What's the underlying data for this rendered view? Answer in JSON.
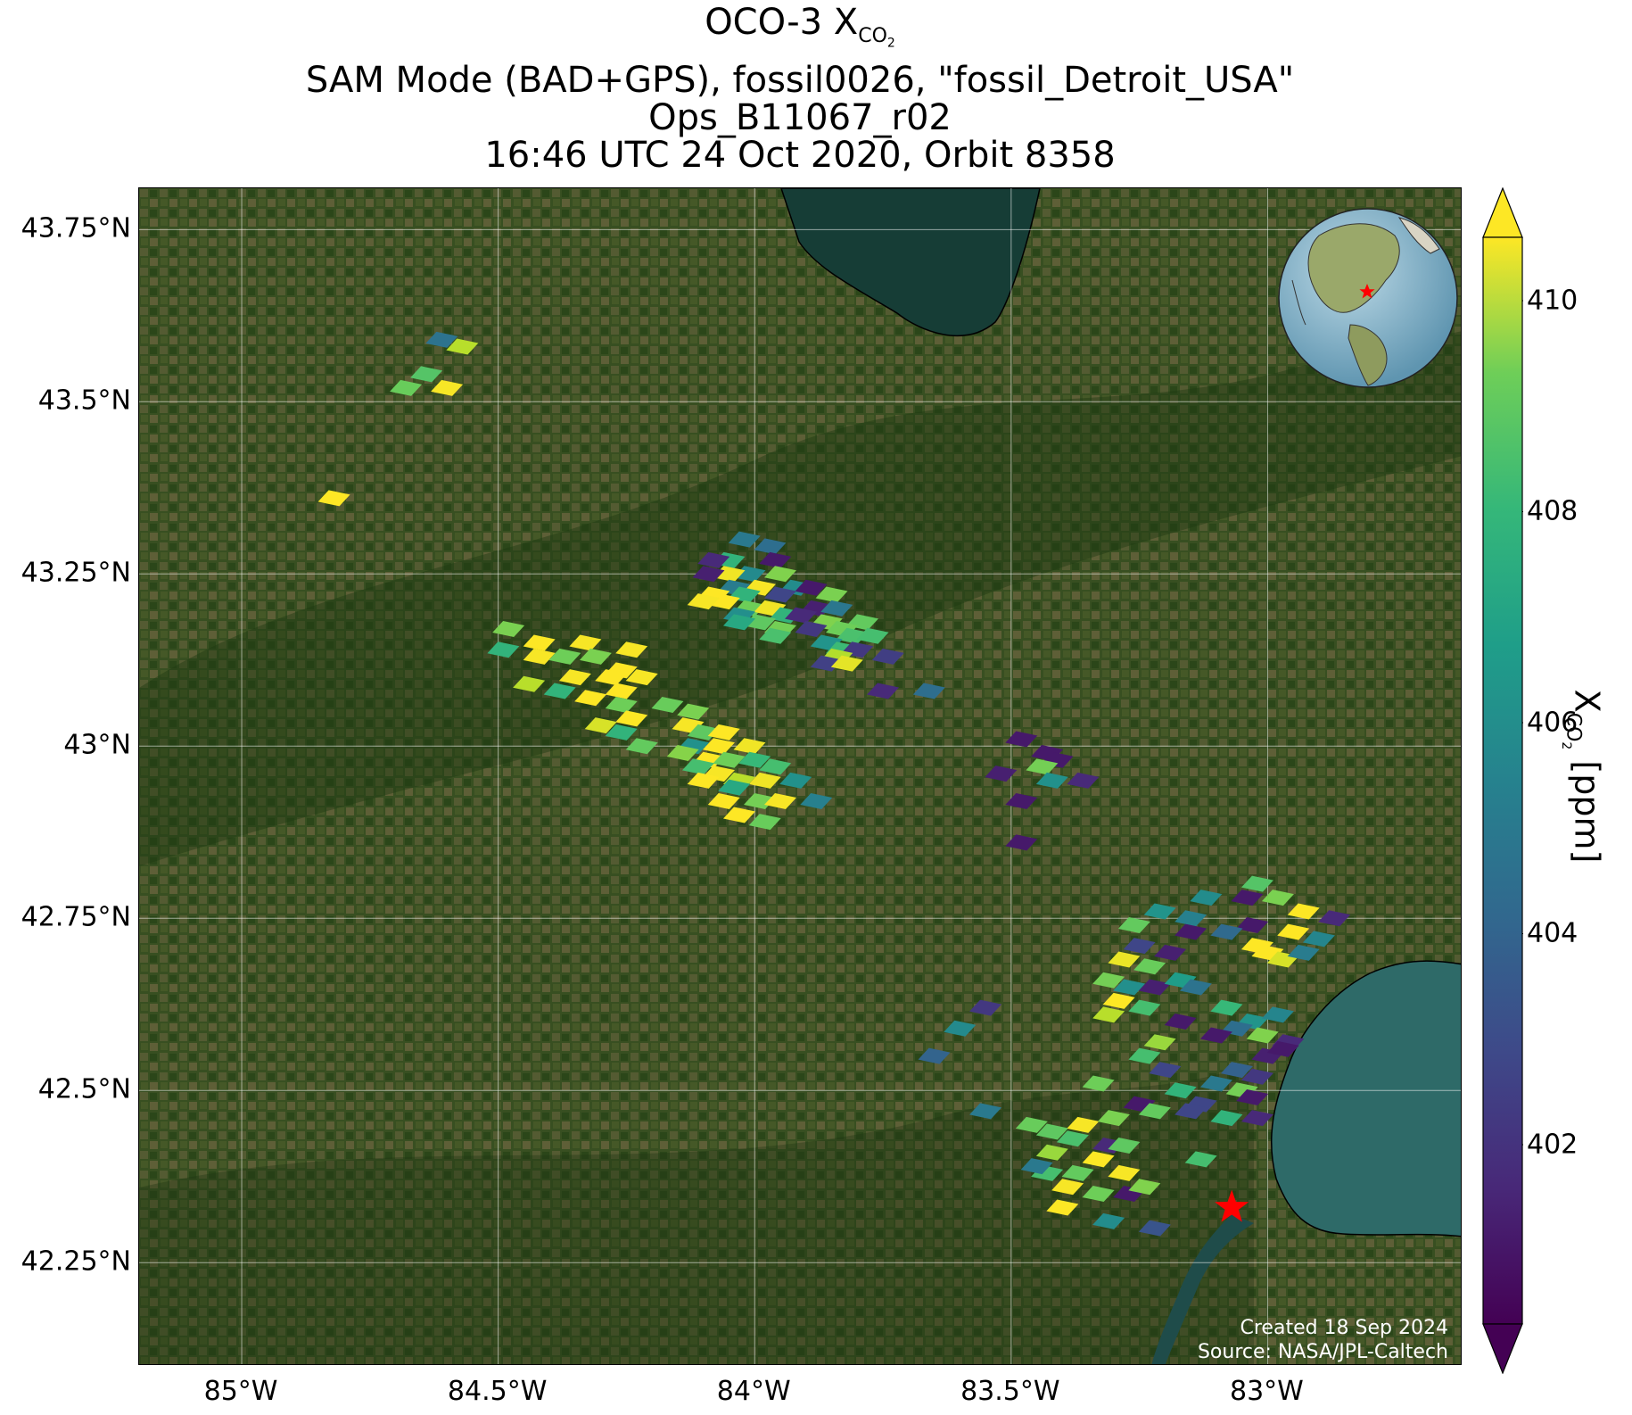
{
  "title": {
    "line1_prefix": "OCO-3 X",
    "line1_sub": "CO",
    "line1_subsub": "2",
    "line2": "SAM Mode (BAD+GPS), fossil0026, \"fossil_Detroit_USA\"",
    "line3": "Ops_B11067_r02",
    "line4": "16:46 UTC 24 Oct 2020, Orbit 8358"
  },
  "map": {
    "lon_range": [
      -85.2,
      -82.62
    ],
    "lat_range": [
      42.1,
      43.81
    ],
    "lat_ticks": [
      {
        "value": 43.75,
        "label": "43.75°N"
      },
      {
        "value": 43.5,
        "label": "43.5°N"
      },
      {
        "value": 43.25,
        "label": "43.25°N"
      },
      {
        "value": 43.0,
        "label": "43°N"
      },
      {
        "value": 42.75,
        "label": "42.75°N"
      },
      {
        "value": 42.5,
        "label": "42.5°N"
      },
      {
        "value": 42.25,
        "label": "42.25°N"
      }
    ],
    "lon_ticks": [
      {
        "value": -85.0,
        "label": "85°W"
      },
      {
        "value": -84.5,
        "label": "84.5°W"
      },
      {
        "value": -84.0,
        "label": "84°W"
      },
      {
        "value": -83.5,
        "label": "83.5°W"
      },
      {
        "value": -83.0,
        "label": "83°W"
      }
    ],
    "gridlines": true,
    "basemap": "satellite imagery (farmland, forest, Saginaw Bay, Lake St. Clair)",
    "target": {
      "name": "fossil_Detroit_USA",
      "lon": -83.07,
      "lat": 42.33,
      "marker": "star",
      "color": "#ff0000"
    },
    "inset_globe": {
      "position": "top-right",
      "marker": "star",
      "marker_color": "#ff0000"
    },
    "credit_line1": "Created 18 Sep 2024",
    "credit_line2": "Source: NASA/JPL-Caltech",
    "soundings": [
      [
        -84.61,
        43.59,
        404.2
      ],
      [
        -84.57,
        43.58,
        409.5
      ],
      [
        -84.64,
        43.54,
        407.8
      ],
      [
        -84.68,
        43.52,
        408.2
      ],
      [
        -84.6,
        43.52,
        410.5
      ],
      [
        -84.82,
        43.36,
        410.6
      ],
      [
        -84.02,
        43.3,
        404.5
      ],
      [
        -83.97,
        43.29,
        404.0
      ],
      [
        -84.05,
        43.27,
        407.0
      ],
      [
        -83.96,
        43.27,
        401.0
      ],
      [
        -84.08,
        43.27,
        401.5
      ],
      [
        -84.01,
        43.25,
        405.2
      ],
      [
        -84.05,
        43.25,
        410.4
      ],
      [
        -83.95,
        43.25,
        408.6
      ],
      [
        -84.09,
        43.25,
        401.2
      ],
      [
        -83.99,
        43.23,
        410.5
      ],
      [
        -84.04,
        43.23,
        404.6
      ],
      [
        -83.92,
        43.23,
        405.3
      ],
      [
        -83.89,
        43.23,
        401.0
      ],
      [
        -84.08,
        43.22,
        410.6
      ],
      [
        -84.02,
        43.22,
        407.0
      ],
      [
        -83.95,
        43.22,
        402.5
      ],
      [
        -83.85,
        43.22,
        408.5
      ],
      [
        -84.06,
        43.21,
        410.6
      ],
      [
        -84.01,
        43.2,
        408.3
      ],
      [
        -83.97,
        43.2,
        410.4
      ],
      [
        -83.88,
        43.2,
        401.2
      ],
      [
        -83.84,
        43.2,
        404.4
      ],
      [
        -84.1,
        43.21,
        410.5
      ],
      [
        -84.03,
        43.19,
        405.4
      ],
      [
        -83.94,
        43.19,
        407.0
      ],
      [
        -83.91,
        43.19,
        401.5
      ],
      [
        -83.86,
        43.18,
        408.6
      ],
      [
        -83.79,
        43.18,
        408.1
      ],
      [
        -83.99,
        43.18,
        408.0
      ],
      [
        -84.03,
        43.18,
        406.5
      ],
      [
        -83.95,
        43.17,
        408.4
      ],
      [
        -83.89,
        43.17,
        402.0
      ],
      [
        -83.83,
        43.17,
        408.3
      ],
      [
        -83.81,
        43.16,
        407.6
      ],
      [
        -83.77,
        43.16,
        407.5
      ],
      [
        -83.96,
        43.16,
        407.6
      ],
      [
        -83.86,
        43.15,
        405.6
      ],
      [
        -83.83,
        43.14,
        407.3
      ],
      [
        -83.8,
        43.14,
        402.0
      ],
      [
        -83.74,
        43.13,
        402.2
      ],
      [
        -83.84,
        43.13,
        409.4
      ],
      [
        -83.86,
        43.12,
        402.3
      ],
      [
        -83.82,
        43.12,
        410.2
      ],
      [
        -83.75,
        43.08,
        401.5
      ],
      [
        -83.66,
        43.08,
        404.0
      ],
      [
        -84.48,
        43.17,
        408.5
      ],
      [
        -84.42,
        43.15,
        410.6
      ],
      [
        -84.33,
        43.15,
        410.5
      ],
      [
        -84.24,
        43.14,
        410.5
      ],
      [
        -84.31,
        43.13,
        408.5
      ],
      [
        -84.49,
        43.14,
        407.0
      ],
      [
        -84.42,
        43.13,
        410.5
      ],
      [
        -84.37,
        43.13,
        408.3
      ],
      [
        -84.26,
        43.11,
        410.6
      ],
      [
        -84.28,
        43.1,
        410.6
      ],
      [
        -84.35,
        43.1,
        410.5
      ],
      [
        -84.26,
        43.08,
        410.6
      ],
      [
        -84.22,
        43.1,
        410.5
      ],
      [
        -84.44,
        43.09,
        409.5
      ],
      [
        -84.38,
        43.08,
        407.0
      ],
      [
        -84.32,
        43.07,
        410.6
      ],
      [
        -84.26,
        43.06,
        408.3
      ],
      [
        -84.17,
        43.06,
        408.2
      ],
      [
        -84.12,
        43.05,
        408.5
      ],
      [
        -84.24,
        43.04,
        410.6
      ],
      [
        -84.3,
        43.03,
        410.0
      ],
      [
        -84.26,
        43.02,
        407.0
      ],
      [
        -84.22,
        43.0,
        408.1
      ],
      [
        -84.13,
        43.03,
        410.5
      ],
      [
        -84.1,
        43.02,
        408.0
      ],
      [
        -84.06,
        43.02,
        410.6
      ],
      [
        -84.12,
        43.0,
        405.5
      ],
      [
        -84.07,
        43.0,
        410.6
      ],
      [
        -84.01,
        43.0,
        410.4
      ],
      [
        -84.14,
        42.99,
        408.7
      ],
      [
        -84.09,
        42.98,
        410.6
      ],
      [
        -84.05,
        42.98,
        408.3
      ],
      [
        -84.0,
        42.98,
        407.2
      ],
      [
        -83.96,
        42.97,
        407.5
      ],
      [
        -84.11,
        42.97,
        407.5
      ],
      [
        -84.07,
        42.96,
        410.5
      ],
      [
        -84.03,
        42.95,
        409.5
      ],
      [
        -83.98,
        42.95,
        410.4
      ],
      [
        -84.1,
        42.95,
        410.6
      ],
      [
        -84.04,
        42.94,
        406.5
      ],
      [
        -83.92,
        42.95,
        405.5
      ],
      [
        -84.06,
        42.92,
        410.6
      ],
      [
        -83.99,
        42.92,
        408.4
      ],
      [
        -83.95,
        42.92,
        410.5
      ],
      [
        -83.88,
        42.92,
        404.8
      ],
      [
        -84.03,
        42.9,
        410.6
      ],
      [
        -83.98,
        42.89,
        408.2
      ],
      [
        -83.48,
        43.01,
        401.0
      ],
      [
        -83.43,
        42.99,
        401.0
      ],
      [
        -83.41,
        42.98,
        401.0
      ],
      [
        -83.44,
        42.97,
        408.4
      ],
      [
        -83.36,
        42.95,
        401.5
      ],
      [
        -83.42,
        42.95,
        405.5
      ],
      [
        -83.52,
        42.96,
        401.2
      ],
      [
        -83.48,
        42.92,
        401.0
      ],
      [
        -83.48,
        42.86,
        401.0
      ],
      [
        -83.12,
        42.78,
        405.3
      ],
      [
        -83.21,
        42.76,
        405.6
      ],
      [
        -83.15,
        42.75,
        404.8
      ],
      [
        -83.02,
        42.8,
        407.8
      ],
      [
        -82.98,
        42.78,
        408.5
      ],
      [
        -82.93,
        42.76,
        410.6
      ],
      [
        -83.03,
        42.74,
        401.0
      ],
      [
        -82.87,
        42.75,
        401.5
      ],
      [
        -83.04,
        42.78,
        401.0
      ],
      [
        -82.95,
        42.73,
        410.6
      ],
      [
        -82.9,
        42.72,
        405.0
      ],
      [
        -83.02,
        42.71,
        410.6
      ],
      [
        -83.0,
        42.7,
        410.6
      ],
      [
        -82.97,
        42.69,
        410.0
      ],
      [
        -82.93,
        42.7,
        404.6
      ],
      [
        -83.08,
        42.73,
        403.8
      ],
      [
        -83.15,
        42.73,
        401.0
      ],
      [
        -83.19,
        42.7,
        401.2
      ],
      [
        -83.26,
        42.74,
        408.1
      ],
      [
        -83.25,
        42.71,
        402.5
      ],
      [
        -83.28,
        42.69,
        410.3
      ],
      [
        -83.23,
        42.68,
        408.2
      ],
      [
        -83.31,
        42.66,
        408.4
      ],
      [
        -83.27,
        42.65,
        405.4
      ],
      [
        -83.22,
        42.65,
        401.2
      ],
      [
        -83.17,
        42.66,
        406.0
      ],
      [
        -83.14,
        42.65,
        404.2
      ],
      [
        -83.29,
        42.63,
        410.6
      ],
      [
        -83.24,
        42.62,
        407.5
      ],
      [
        -83.31,
        42.61,
        409.5
      ],
      [
        -83.17,
        42.6,
        401.0
      ],
      [
        -83.08,
        42.62,
        407.2
      ],
      [
        -83.03,
        42.6,
        405.6
      ],
      [
        -82.98,
        42.61,
        405.0
      ],
      [
        -83.06,
        42.59,
        404.0
      ],
      [
        -83.1,
        42.58,
        401.0
      ],
      [
        -83.01,
        42.58,
        408.6
      ],
      [
        -82.96,
        42.57,
        401.5
      ],
      [
        -83.0,
        42.55,
        401.2
      ],
      [
        -82.97,
        42.56,
        401.0
      ],
      [
        -83.21,
        42.57,
        409.0
      ],
      [
        -83.24,
        42.55,
        407.5
      ],
      [
        -83.06,
        42.53,
        403.5
      ],
      [
        -83.02,
        42.52,
        402.0
      ],
      [
        -83.1,
        42.51,
        404.5
      ],
      [
        -83.05,
        42.5,
        408.4
      ],
      [
        -83.13,
        42.48,
        402.5
      ],
      [
        -83.03,
        42.49,
        401.0
      ],
      [
        -83.08,
        42.46,
        407.0
      ],
      [
        -83.02,
        42.46,
        401.5
      ],
      [
        -83.33,
        42.51,
        408.3
      ],
      [
        -83.25,
        42.48,
        401.0
      ],
      [
        -83.22,
        42.47,
        408.1
      ],
      [
        -83.15,
        42.47,
        402.5
      ],
      [
        -83.55,
        42.62,
        402.0
      ],
      [
        -83.6,
        42.59,
        405.2
      ],
      [
        -83.65,
        42.55,
        403.6
      ],
      [
        -83.55,
        42.47,
        404.5
      ],
      [
        -83.46,
        42.45,
        408.2
      ],
      [
        -83.42,
        42.44,
        408.0
      ],
      [
        -83.38,
        42.43,
        407.6
      ],
      [
        -83.31,
        42.42,
        401.5
      ],
      [
        -83.33,
        42.4,
        410.6
      ],
      [
        -83.37,
        42.38,
        408.1
      ],
      [
        -83.43,
        42.38,
        407.5
      ],
      [
        -83.28,
        42.42,
        408.0
      ],
      [
        -83.28,
        42.38,
        410.5
      ],
      [
        -83.39,
        42.36,
        410.5
      ],
      [
        -83.33,
        42.35,
        408.3
      ],
      [
        -83.27,
        42.35,
        401.0
      ],
      [
        -83.24,
        42.36,
        408.6
      ],
      [
        -83.4,
        42.33,
        410.6
      ],
      [
        -83.31,
        42.31,
        405.3
      ],
      [
        -83.22,
        42.3,
        403.0
      ],
      [
        -83.42,
        42.41,
        409.0
      ],
      [
        -83.45,
        42.39,
        404.5
      ],
      [
        -83.36,
        42.45,
        410.5
      ],
      [
        -83.3,
        42.46,
        408.5
      ],
      [
        -83.13,
        42.4,
        407.5
      ],
      [
        -83.17,
        42.5,
        407.0
      ],
      [
        -83.2,
        42.53,
        402.5
      ]
    ]
  },
  "colorbar": {
    "label_main": "X",
    "label_sub": "CO",
    "label_subsub": "2",
    "label_unit": " [ppm]",
    "vmin": 400.3,
    "vmax": 410.6,
    "colormap": "viridis",
    "ticks": [
      {
        "value": 402,
        "label": "402"
      },
      {
        "value": 404,
        "label": "404"
      },
      {
        "value": 406,
        "label": "406"
      },
      {
        "value": 408,
        "label": "408"
      },
      {
        "value": 410,
        "label": "410"
      }
    ],
    "extend": "both",
    "under_color": "#440154",
    "over_color": "#fde725"
  }
}
